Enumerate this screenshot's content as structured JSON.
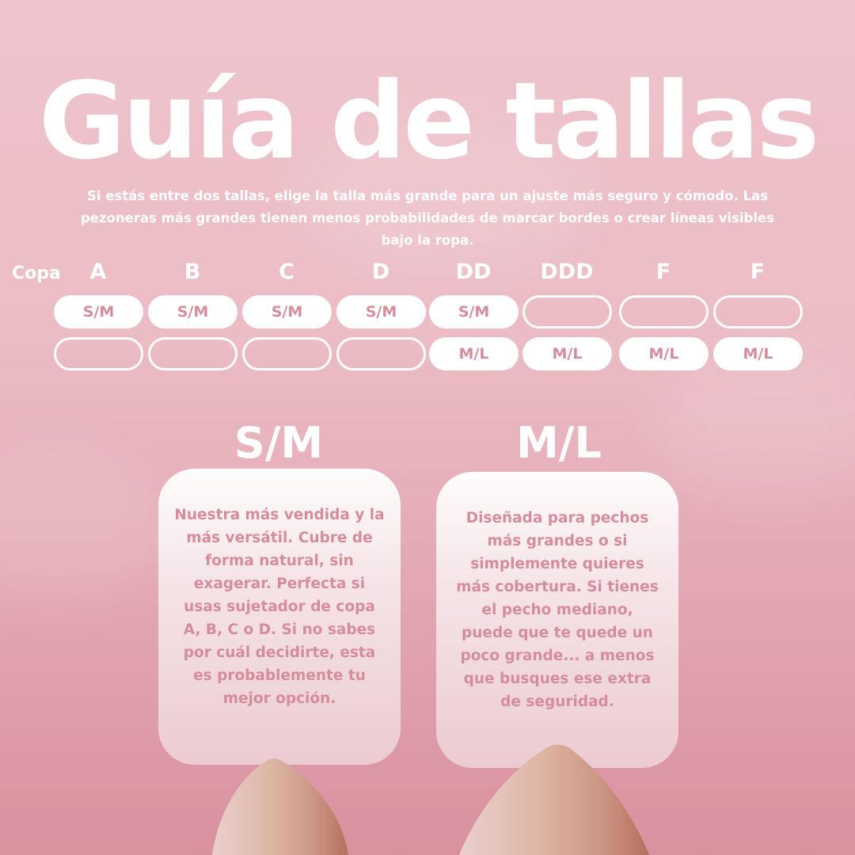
{
  "title": "Guía de tallas",
  "subtitle": "Si estás entre dos tallas, elige la talla más grande para un ajuste más seguro y cómodo. Las pezoneras más grandes tienen menos probabilidades de marcar bordes o crear líneas visibles bajo la ropa.",
  "table": {
    "row_label": "Copa",
    "cups": [
      {
        "cup": "A",
        "sm": "S/M",
        "ml": ""
      },
      {
        "cup": "B",
        "sm": "S/M",
        "ml": ""
      },
      {
        "cup": "C",
        "sm": "S/M",
        "ml": ""
      },
      {
        "cup": "D",
        "sm": "S/M",
        "ml": ""
      },
      {
        "cup": "DD",
        "sm": "S/M",
        "ml": "M/L"
      },
      {
        "cup": "DDD",
        "sm": "",
        "ml": "M/L"
      },
      {
        "cup": "F",
        "sm": "",
        "ml": "M/L"
      },
      {
        "cup": "F",
        "sm": "",
        "ml": "M/L"
      }
    ]
  },
  "sizes": [
    {
      "name": "S/M",
      "description": "Nuestra más vendida y la más versátil. Cubre de forma natural, sin exagerar. Perfecta si usas sujetador de copa A, B, C o D. Si no sabes por cuál decidirte, esta es probablemente tu mejor opción."
    },
    {
      "name": "M/L",
      "description": "Diseñada para pechos más grandes o si simplemente quieres más cobertura. Si tienes el pecho mediano, puede que te quede un poco grande... a menos que busques ese extra de seguridad."
    }
  ],
  "colors": {
    "accent_text": "#d68d9b",
    "background_top": "#efc4cc",
    "background_bottom": "#d9919e"
  }
}
